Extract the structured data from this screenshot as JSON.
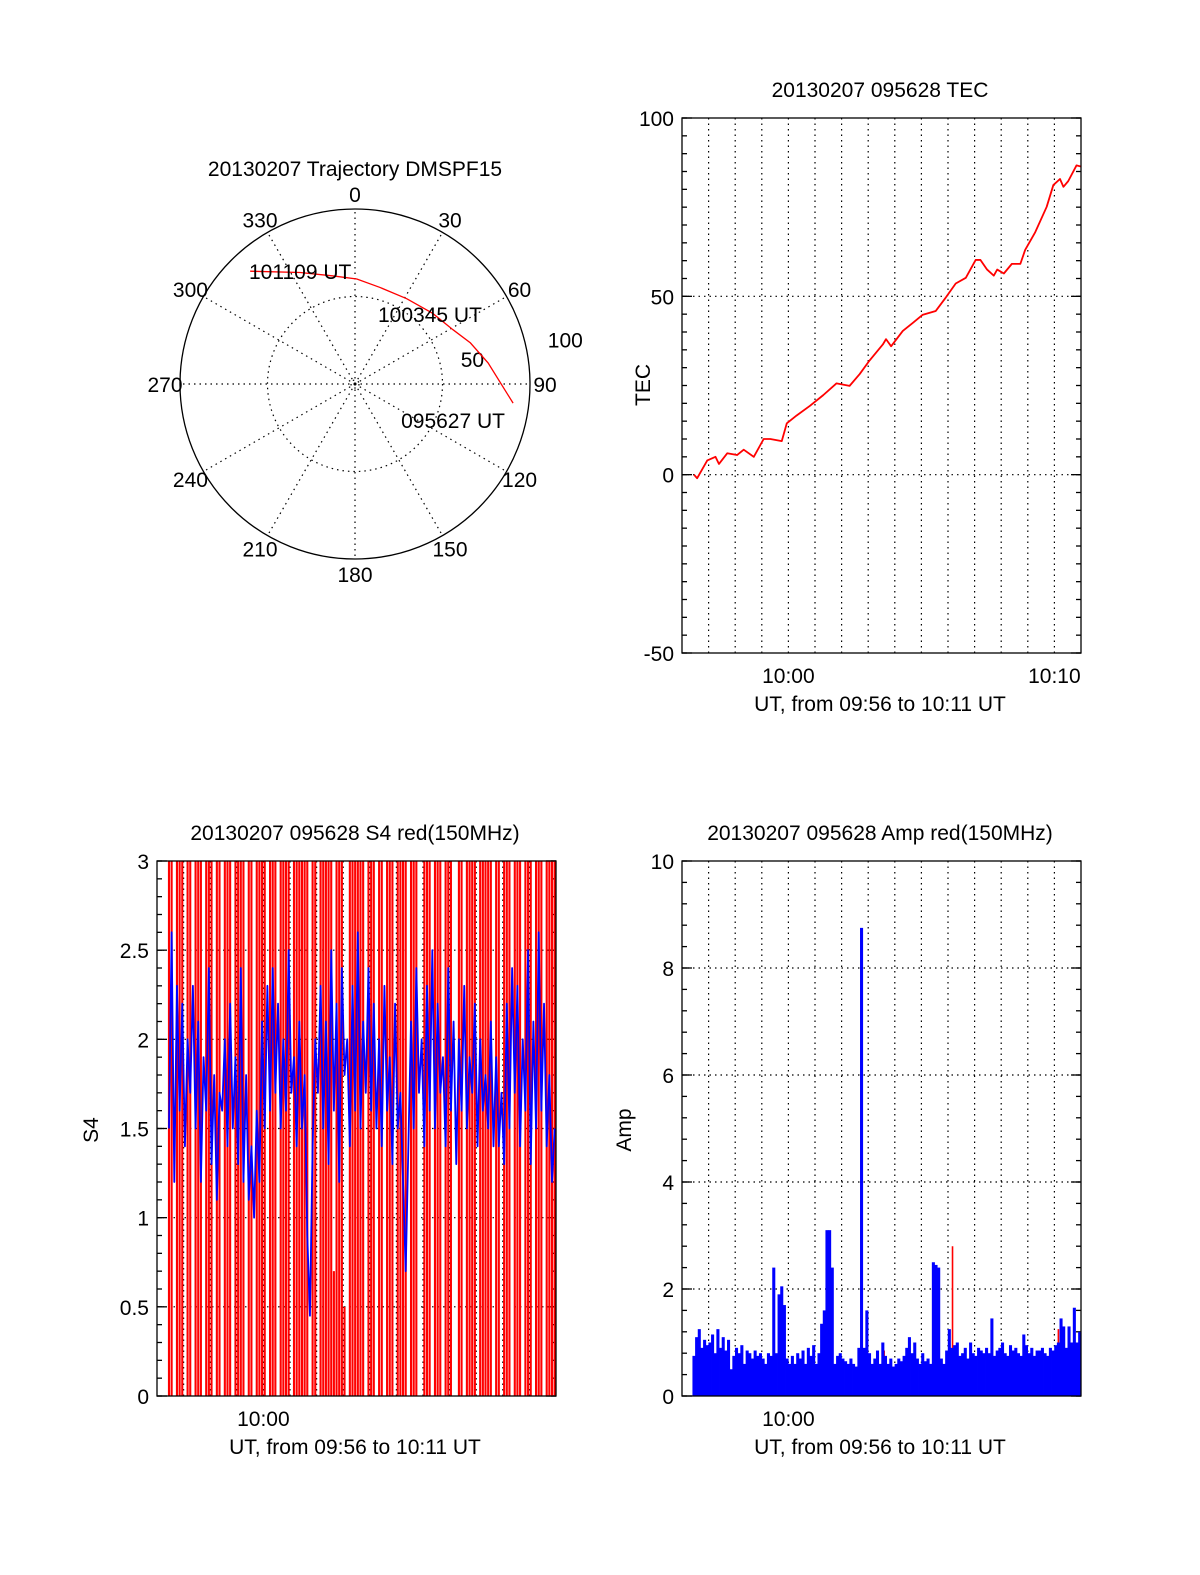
{
  "chart_data": [
    {
      "type": "polar",
      "title": "20130207 Trajectory DMSPF15",
      "angle_labels": [
        "0",
        "30",
        "60",
        "90",
        "120",
        "150",
        "180",
        "210",
        "240",
        "270",
        "300",
        "330"
      ],
      "radial_max": 100,
      "rings": [
        50,
        100
      ],
      "radial_labels": [
        "50",
        "100"
      ],
      "trajectory": {
        "color": "#ff0000",
        "points_az_r": [
          [
            96.9,
            91
          ],
          [
            81,
            77
          ],
          [
            70.4,
            70
          ],
          [
            61,
            64
          ],
          [
            47.7,
            60
          ],
          [
            31.2,
            57
          ],
          [
            14.5,
            57
          ],
          [
            1,
            60
          ],
          [
            348.6,
            63
          ],
          [
            333.8,
            71
          ],
          [
            317.1,
            88
          ]
        ],
        "labels": [
          "095627 UT",
          "100345 UT",
          "101109 UT"
        ]
      }
    },
    {
      "type": "line",
      "title": "20130207 095628 TEC",
      "xlabel": "UT, from 09:56 to 10:11 UT",
      "ylabel": "TEC",
      "x_units": "minutes from 10:00 UT",
      "xlim": [
        -4,
        11
      ],
      "ylim": [
        -50,
        100
      ],
      "x_ticks": [
        {
          "value": 0,
          "label": "10:00"
        },
        {
          "value": 10,
          "label": "10:10"
        }
      ],
      "y_ticks": [
        {
          "value": -50,
          "label": "-50"
        },
        {
          "value": 0,
          "label": "0"
        },
        {
          "value": 50,
          "label": "50"
        },
        {
          "value": 100,
          "label": "100"
        }
      ],
      "grid": true,
      "series": [
        {
          "name": "TEC",
          "color": "#ff0000",
          "x": [
            -3.55,
            -3.43,
            -3.05,
            -2.74,
            -2.61,
            -2.3,
            -1.93,
            -1.68,
            -1.3,
            -0.93,
            -0.68,
            -0.25,
            -0.06,
            0.31,
            0.81,
            1.31,
            1.81,
            2.3,
            2.68,
            3.05,
            3.55,
            3.67,
            3.86,
            4.3,
            4.67,
            5.04,
            5.54,
            5.92,
            6.29,
            6.67,
            7.04,
            7.22,
            7.47,
            7.72,
            7.85,
            8.1,
            8.4,
            8.72,
            8.9,
            9.28,
            9.71,
            9.96,
            10.21,
            10.34,
            10.52,
            10.83,
            11.0
          ],
          "y": [
            0,
            -1,
            4,
            5,
            3,
            6,
            5.5,
            7,
            5,
            10,
            10,
            9.4,
            14.4,
            16.6,
            19.3,
            22.3,
            25.6,
            24.9,
            28.2,
            32,
            36.5,
            38,
            36,
            40.3,
            42.5,
            44.8,
            45.9,
            49.7,
            53.6,
            55.2,
            60.2,
            60.2,
            57.5,
            55.8,
            57.5,
            56.4,
            59.1,
            59.1,
            63,
            68,
            75.1,
            81.2,
            82.9,
            80.7,
            82.3,
            86.7,
            86.4
          ]
        }
      ]
    },
    {
      "type": "line",
      "title": "20130207 095628 S4 red(150MHz)",
      "xlabel": "UT, from 09:56 to 10:11 UT",
      "ylabel": "S4",
      "x_units": "minutes from 10:00 UT",
      "xlim": [
        -4,
        11
      ],
      "ylim": [
        0,
        3
      ],
      "x_ticks": [
        {
          "value": 0,
          "label": "10:00"
        }
      ],
      "y_ticks": [
        {
          "value": 0,
          "label": "0"
        },
        {
          "value": 0.5,
          "label": "0.5"
        },
        {
          "value": 1,
          "label": "1"
        },
        {
          "value": 1.5,
          "label": "1.5"
        },
        {
          "value": 2,
          "label": "2"
        },
        {
          "value": 2.5,
          "label": "2.5"
        },
        {
          "value": 3,
          "label": "3"
        }
      ],
      "grid": true,
      "series": [
        {
          "name": "red",
          "color": "#ff0000",
          "style": "stems",
          "x_start": -3.55,
          "dx": 0.1,
          "values": [
            3,
            3,
            0,
            3,
            3,
            3,
            0,
            3,
            3,
            0,
            3,
            3,
            3,
            0,
            3,
            3,
            3,
            0,
            3,
            3,
            0,
            3,
            3,
            3,
            0,
            3,
            3,
            3,
            3,
            0,
            3,
            3,
            0,
            3,
            3,
            3,
            3,
            0,
            3,
            3,
            3,
            0,
            3,
            3,
            3,
            3,
            0,
            3,
            3,
            3,
            3,
            3,
            3,
            0,
            3,
            3,
            0,
            3,
            3,
            3,
            3,
            3,
            0.7,
            3,
            3,
            3,
            0.5,
            0,
            3,
            3,
            3,
            3,
            3,
            3,
            0,
            3,
            3,
            3,
            0,
            3,
            3,
            0,
            3,
            3,
            3,
            0,
            3,
            3,
            3,
            3,
            0,
            3,
            3,
            3,
            0,
            0,
            3,
            3,
            3,
            0,
            3,
            3,
            3,
            0,
            3,
            3,
            3,
            0,
            0,
            3,
            3,
            0,
            3,
            3,
            3,
            3,
            0,
            3,
            3,
            3,
            3,
            3,
            0,
            3,
            3,
            0,
            3,
            3,
            3,
            0,
            3,
            3,
            3,
            0,
            3,
            3,
            3,
            0,
            3,
            3,
            3,
            0,
            3,
            3,
            3,
            3
          ]
        },
        {
          "name": "blue",
          "color": "#0000ff",
          "style": "line",
          "x_start": -3.55,
          "dx": 0.1,
          "values": [
            1.5,
            2.6,
            1.2,
            2.3,
            1.6,
            2.2,
            1.4,
            2.0,
            1.7,
            2.3,
            1.5,
            2.1,
            1.2,
            1.9,
            1.6,
            2.4,
            1.3,
            1.8,
            1.1,
            1.7,
            1.6,
            2.0,
            1.4,
            2.2,
            1.5,
            1.9,
            1.3,
            2.4,
            1.2,
            1.8,
            1.1,
            1.4,
            1.0,
            1.6,
            1.2,
            2.1,
            1.5,
            2.3,
            1.6,
            2.4,
            1.7,
            2.2,
            1.5,
            2.0,
            1.6,
            2.5,
            1.7,
            1.9,
            1.4,
            2.1,
            1.5,
            1.8,
            0.9,
            0.45,
            1.4,
            2.0,
            1.7,
            2.3,
            1.5,
            2.1,
            1.3,
            2.5,
            1.6,
            2.2,
            1.2,
            2.4,
            1.8,
            2.0,
            1.4,
            2.3,
            1.6,
            2.6,
            1.5,
            2.1,
            1.7,
            2.4,
            1.6,
            2.2,
            1.5,
            2.0,
            1.4,
            2.3,
            1.6,
            1.9,
            1.3,
            2.2,
            1.5,
            1.7,
            1.2,
            0.7,
            1.4,
            2.1,
            1.5,
            2.4,
            1.7,
            2.0,
            1.4,
            2.3,
            1.6,
            2.5,
            1.5,
            2.2,
            1.7,
            1.9,
            1.4,
            2.4,
            1.6,
            2.1,
            1.3,
            2.0,
            1.6,
            2.3,
            1.5,
            1.9,
            1.7,
            2.2,
            1.4,
            2.0,
            1.6,
            1.8,
            1.5,
            2.1,
            1.4,
            1.9,
            1.4,
            1.7,
            1.3,
            2.2,
            1.5,
            2.4,
            1.7,
            2.3,
            1.4,
            2.0,
            1.6,
            2.5,
            1.3,
            2.1,
            1.5,
            2.6,
            1.6,
            2.2,
            1.4,
            1.8,
            1.2,
            1.5
          ]
        }
      ]
    },
    {
      "type": "bar",
      "title": "20130207 095628 Amp red(150MHz)",
      "xlabel": "UT, from 09:56 to 10:11 UT",
      "ylabel": "Amp",
      "x_units": "minutes from 10:00 UT",
      "xlim": [
        -4,
        11
      ],
      "ylim": [
        0,
        10
      ],
      "x_ticks": [
        {
          "value": 0,
          "label": "10:00"
        }
      ],
      "y_ticks": [
        {
          "value": 0,
          "label": "0"
        },
        {
          "value": 2,
          "label": "2"
        },
        {
          "value": 4,
          "label": "4"
        },
        {
          "value": 6,
          "label": "6"
        },
        {
          "value": 8,
          "label": "8"
        },
        {
          "value": 10,
          "label": "10"
        }
      ],
      "grid": true,
      "series": [
        {
          "name": "red",
          "color": "#ff0000",
          "style": "spikes",
          "x": [
            3.6,
            6.17,
            10.15
          ],
          "values": [
            0.85,
            2.8,
            1.25
          ]
        },
        {
          "name": "blue",
          "color": "#0000ff",
          "style": "bars",
          "x_start": -3.55,
          "dx": 0.1,
          "values": [
            0.75,
            1.1,
            1.25,
            0.9,
            1.05,
            0.95,
            1.0,
            1.15,
            0.8,
            1.25,
            0.9,
            1.1,
            0.85,
            1.05,
            0.5,
            0.75,
            0.9,
            0.8,
            0.95,
            0.6,
            0.85,
            0.8,
            0.7,
            0.85,
            0.75,
            0.8,
            0.7,
            0.6,
            0.8,
            0.75,
            2.4,
            0.8,
            1.9,
            2.05,
            1.7,
            0.7,
            0.6,
            0.75,
            0.6,
            0.8,
            0.7,
            0.85,
            0.6,
            0.9,
            0.75,
            0.95,
            0.6,
            0.8,
            1.35,
            1.6,
            3.1,
            3.1,
            2.4,
            0.6,
            0.75,
            0.8,
            0.7,
            0.65,
            0.6,
            0.7,
            0.6,
            0.55,
            0.9,
            8.75,
            0.9,
            1.6,
            0.8,
            0.6,
            0.7,
            0.85,
            0.6,
            1.0,
            0.75,
            0.6,
            0.7,
            0.55,
            0.6,
            0.7,
            0.65,
            0.75,
            0.9,
            1.1,
            0.8,
            1.0,
            0.7,
            0.6,
            0.8,
            0.65,
            0.7,
            0.6,
            2.5,
            2.45,
            2.4,
            0.7,
            0.6,
            0.85,
            1.25,
            0.9,
            0.95,
            1.0,
            0.75,
            0.8,
            0.9,
            0.7,
            1.0,
            0.8,
            0.75,
            0.9,
            0.85,
            0.8,
            0.9,
            0.8,
            1.45,
            0.75,
            0.85,
            0.9,
            1.0,
            0.8,
            0.75,
            0.95,
            0.85,
            0.9,
            0.8,
            0.75,
            1.15,
            0.95,
            0.8,
            0.9,
            0.75,
            0.85,
            0.85,
            0.9,
            0.8,
            0.75,
            0.9,
            0.85,
            0.95,
            1.0,
            1.45,
            1.3,
            0.9,
            1.3,
            1.0,
            1.65,
            1.0,
            1.2
          ]
        }
      ]
    }
  ]
}
